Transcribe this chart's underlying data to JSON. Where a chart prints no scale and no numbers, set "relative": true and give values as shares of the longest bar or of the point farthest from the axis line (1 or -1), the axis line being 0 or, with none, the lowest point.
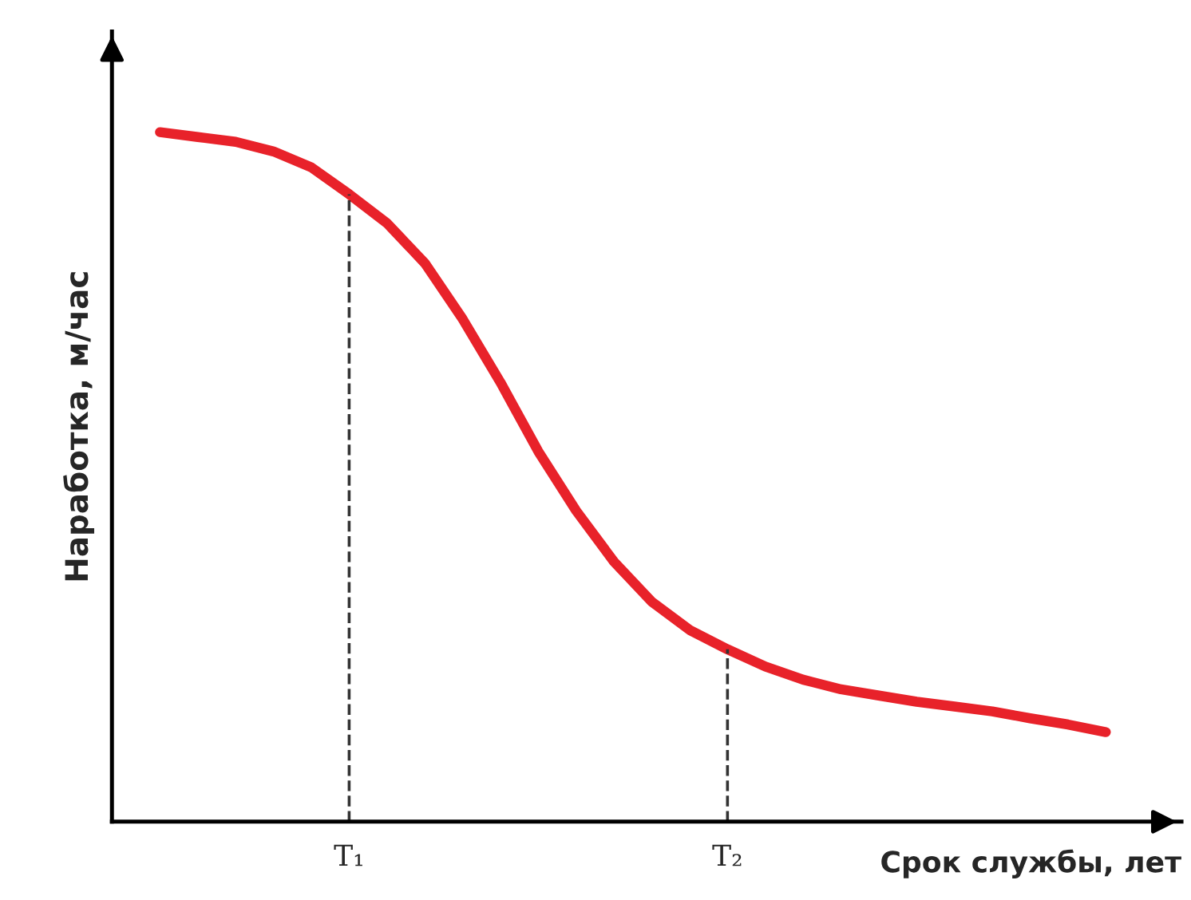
{
  "chart_data": {
    "type": "line",
    "relative": true,
    "xlabel": "Срок службы, лет",
    "ylabel": "Наработка, м/час",
    "categories": [
      null,
      null,
      null,
      null,
      null,
      "T₁",
      null,
      null,
      null,
      null,
      null,
      null,
      null,
      null,
      null,
      "T₂",
      null,
      null,
      null,
      null,
      null,
      null,
      null,
      null,
      null,
      null
    ],
    "series": [
      {
        "color": "#e8222a",
        "values": [
          1,
          0.993,
          0.986,
          0.972,
          0.949,
          0.91,
          0.868,
          0.81,
          0.729,
          0.637,
          0.537,
          0.451,
          0.377,
          0.319,
          0.278,
          0.25,
          0.225,
          0.206,
          0.192,
          0.183,
          0.174,
          0.167,
          0.16,
          0.15,
          0.141,
          0.13
        ]
      }
    ],
    "ref_lines": [
      {
        "axis": "x",
        "value": "T₁",
        "color": "#333333",
        "line_style": "dashed"
      },
      {
        "axis": "x",
        "value": "T₂",
        "color": "#333333",
        "line_style": "dashed"
      }
    ],
    "grid": false,
    "legend": false,
    "marker": "none",
    "line_style": "solid"
  }
}
